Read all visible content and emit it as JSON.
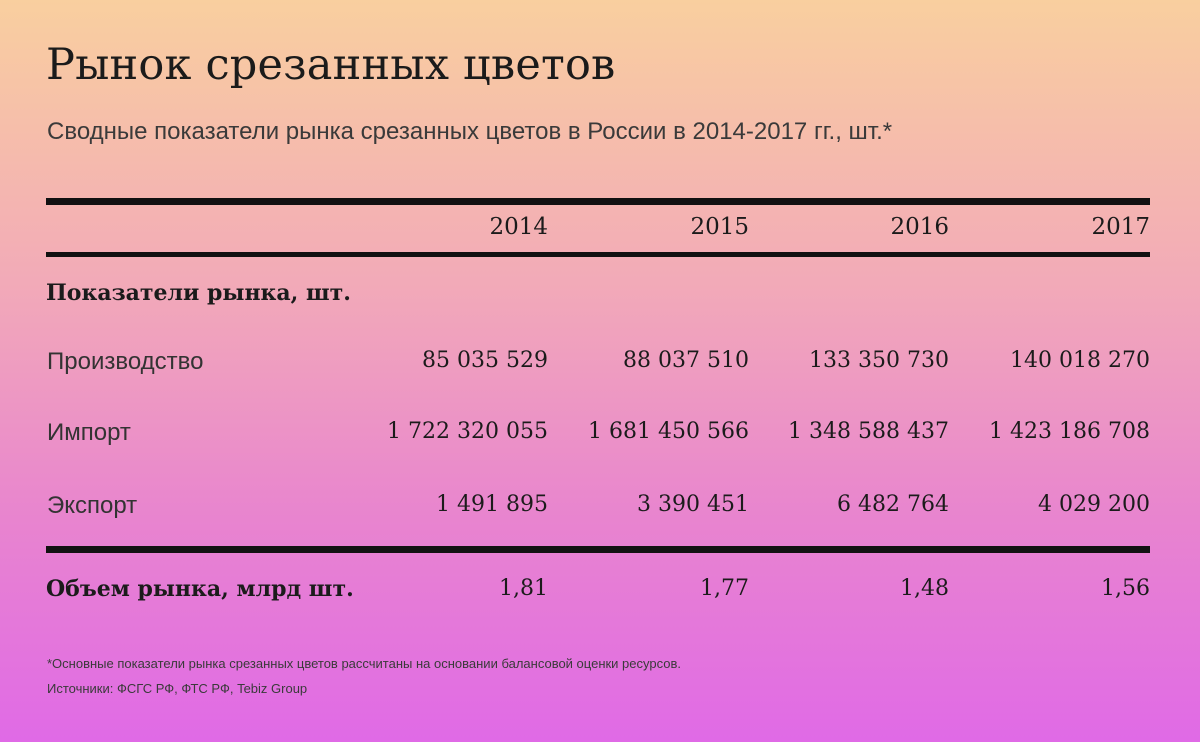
{
  "chart_data": {
    "type": "table",
    "title": "Рынок срезанных цветов",
    "subtitle": "Сводные показатели рынка срезанных цветов в России в 2014-2017 гг., шт.*",
    "columns": [
      "2014",
      "2015",
      "2016",
      "2017"
    ],
    "section_label": "Показатели рынка, шт.",
    "rows": [
      {
        "label": "Производство",
        "values": [
          "85 035 529",
          "88 037 510",
          "133 350 730",
          "140 018 270"
        ]
      },
      {
        "label": "Импорт",
        "values": [
          "1 722 320 055",
          "1 681 450 566",
          "1 348 588 437",
          "1 423 186 708"
        ]
      },
      {
        "label": "Экспорт",
        "values": [
          "1 491 895",
          "3 390 451",
          "6 482 764",
          "4 029 200"
        ]
      }
    ],
    "total": {
      "label": "Объем рынка, млрд шт.",
      "values": [
        "1,81",
        "1,77",
        "1,48",
        "1,56"
      ]
    },
    "footnote": "*Основные показатели рынка срезанных цветов рассчитаны на основании балансовой оценки ресурсов.",
    "sources": "Источники: ФСГС РФ, ФТС РФ, Tebiz Group"
  }
}
